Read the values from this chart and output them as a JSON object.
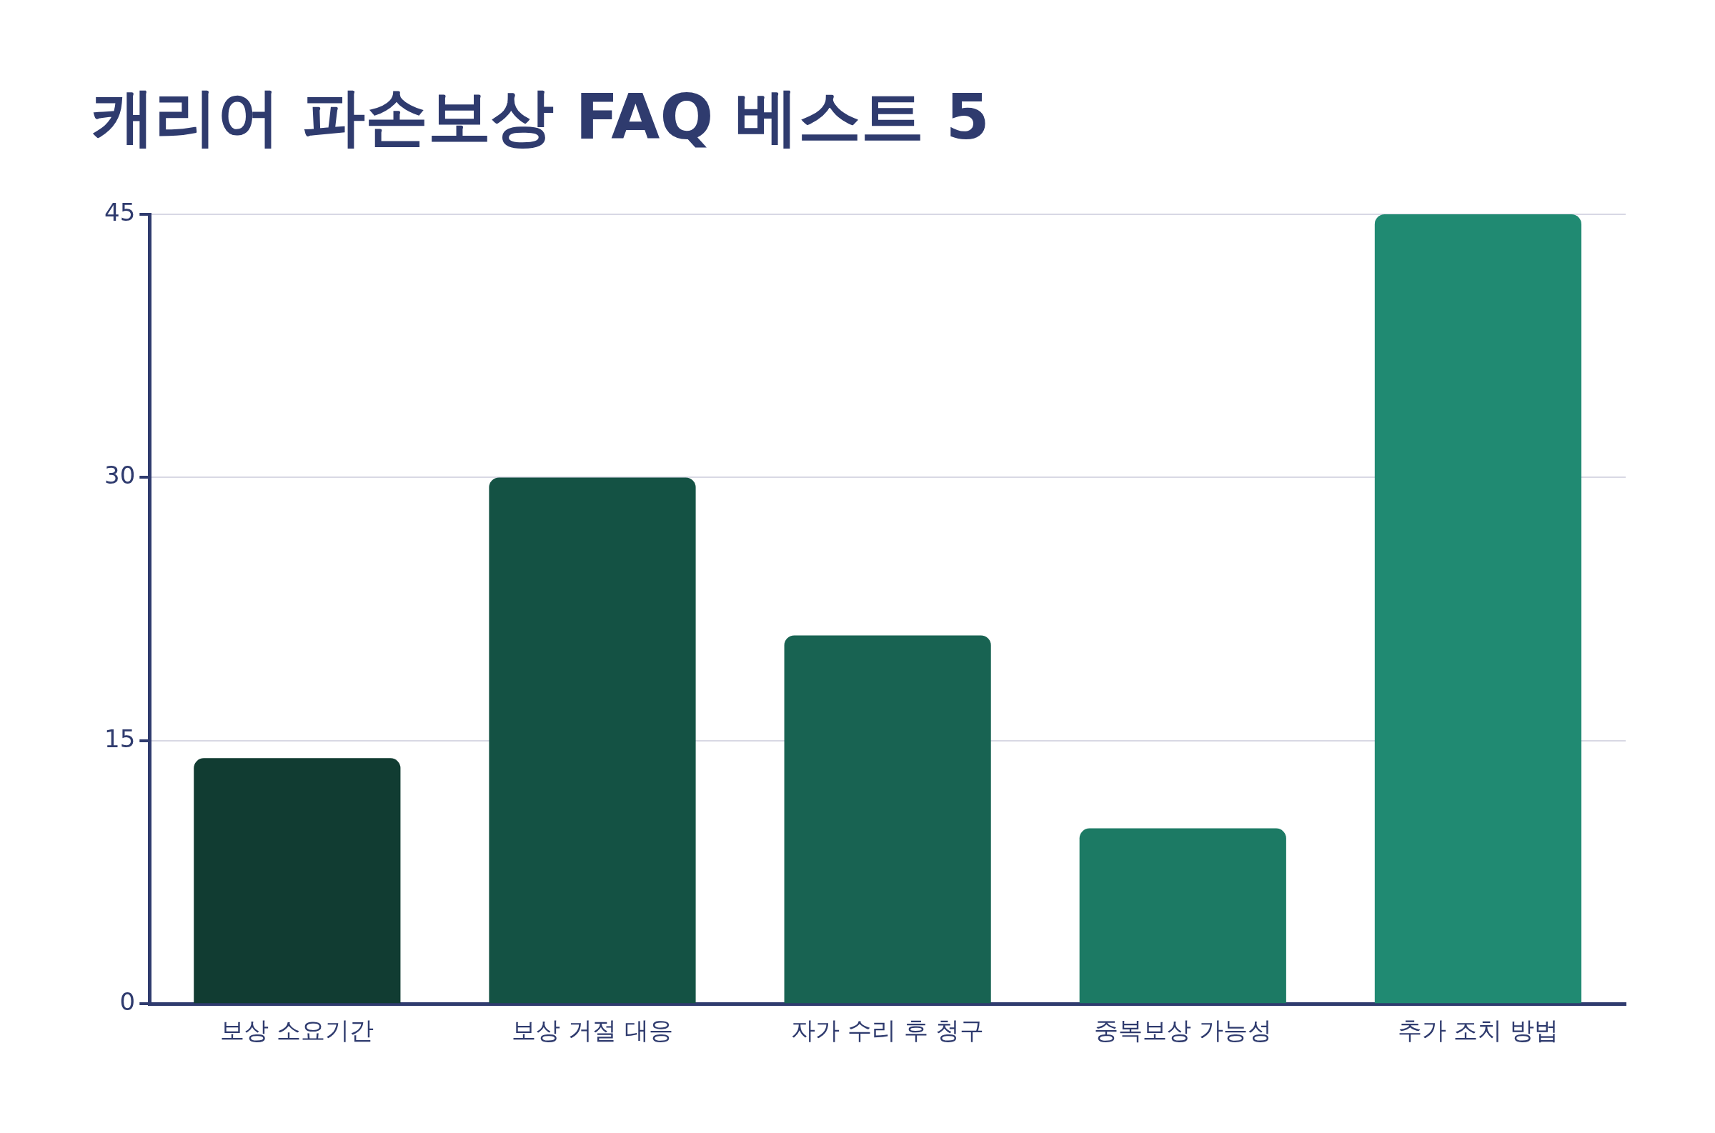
{
  "chart_data": {
    "type": "bar",
    "title": "캐리어 파손보상 FAQ 베스트 5",
    "categories": [
      "보상 소요기간",
      "보상 거절 대응",
      "자가 수리 후 청구",
      "중복보상 가능성",
      "추가 조치 방법"
    ],
    "values": [
      14,
      30,
      21,
      10,
      45
    ],
    "colors": [
      "#113c32",
      "#145244",
      "#186352",
      "#1c7a64",
      "#208a72"
    ],
    "ylim": [
      0,
      45
    ],
    "yticks": [
      0,
      15,
      30,
      45
    ],
    "grid": "y",
    "legend": false
  }
}
